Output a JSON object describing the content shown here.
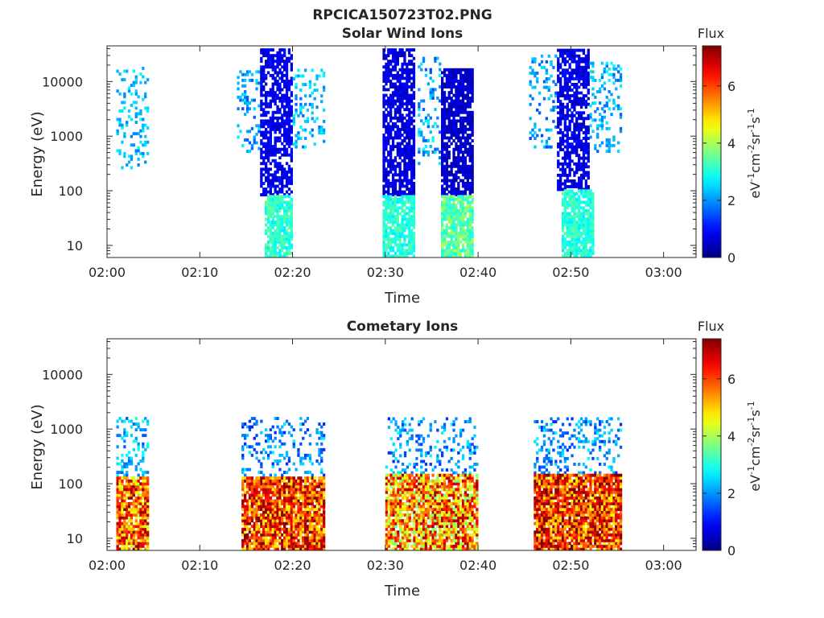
{
  "figure": {
    "title": "RPCICA150723T02.PNG"
  },
  "colors": {
    "background": "#ffffff",
    "axis": "#262626",
    "colormap": "jet"
  },
  "chart_data": [
    {
      "type": "heatmap",
      "title": "Solar Wind Ions",
      "xlabel": "Time",
      "ylabel": "Energy (eV)",
      "x_unit": "minutes after 02:00",
      "xlim": [
        0,
        63.5
      ],
      "ylim": [
        6,
        45000
      ],
      "y_scale": "log",
      "x_ticks": [
        {
          "value": 0,
          "label": "02:00"
        },
        {
          "value": 10,
          "label": "02:10"
        },
        {
          "value": 20,
          "label": "02:20"
        },
        {
          "value": 30,
          "label": "02:30"
        },
        {
          "value": 40,
          "label": "02:40"
        },
        {
          "value": 50,
          "label": "02:50"
        },
        {
          "value": 60,
          "label": "03:00"
        }
      ],
      "y_ticks": [
        {
          "value": 10,
          "label": "10"
        },
        {
          "value": 100,
          "label": "100"
        },
        {
          "value": 1000,
          "label": "1000"
        },
        {
          "value": 10000,
          "label": "10000"
        }
      ],
      "colorbar": {
        "title": "Flux",
        "label_parts": [
          "eV",
          "-1",
          "cm",
          "-2",
          "sr",
          "-1",
          "s",
          "-1"
        ],
        "range": [
          0,
          7.4
        ],
        "ticks": [
          {
            "value": 0,
            "label": "0"
          },
          {
            "value": 2,
            "label": "2"
          },
          {
            "value": 4,
            "label": "4"
          },
          {
            "value": 6,
            "label": "6"
          }
        ]
      },
      "blocks": [
        {
          "t": [
            1.0,
            4.5
          ],
          "e": [
            250,
            18000
          ],
          "fill": 0.25,
          "base": 1.8,
          "spread": 1.0
        },
        {
          "t": [
            14.0,
            16.5
          ],
          "e": [
            500,
            16000
          ],
          "fill": 0.22,
          "base": 1.5,
          "spread": 1.2
        },
        {
          "t": [
            16.5,
            20.0
          ],
          "e": [
            80,
            38000
          ],
          "fill": 0.7,
          "base": 0.5,
          "spread": 0.6
        },
        {
          "t": [
            20.0,
            23.5
          ],
          "e": [
            600,
            16000
          ],
          "fill": 0.25,
          "base": 1.6,
          "spread": 1.2
        },
        {
          "t": [
            17.0,
            20.0
          ],
          "e": [
            6,
            80
          ],
          "fill": 0.85,
          "base": 2.6,
          "spread": 1.0
        },
        {
          "t": [
            29.7,
            33.2
          ],
          "e": [
            80,
            38000
          ],
          "fill": 0.75,
          "base": 0.4,
          "spread": 0.6
        },
        {
          "t": [
            29.7,
            33.2
          ],
          "e": [
            6,
            80
          ],
          "fill": 0.85,
          "base": 2.6,
          "spread": 0.9
        },
        {
          "t": [
            33.5,
            36.0
          ],
          "e": [
            300,
            26000
          ],
          "fill": 0.2,
          "base": 1.4,
          "spread": 1.4
        },
        {
          "t": [
            36.0,
            39.5
          ],
          "e": [
            80,
            16000
          ],
          "fill": 0.8,
          "base": 0.3,
          "spread": 0.5
        },
        {
          "t": [
            36.0,
            39.5
          ],
          "e": [
            6,
            80
          ],
          "fill": 0.85,
          "base": 2.8,
          "spread": 1.3
        },
        {
          "t": [
            45.5,
            48.5
          ],
          "e": [
            600,
            30000
          ],
          "fill": 0.25,
          "base": 1.4,
          "spread": 1.2
        },
        {
          "t": [
            48.5,
            52.0
          ],
          "e": [
            100,
            38000
          ],
          "fill": 0.7,
          "base": 0.4,
          "spread": 0.7
        },
        {
          "t": [
            52.0,
            55.5
          ],
          "e": [
            500,
            22000
          ],
          "fill": 0.25,
          "base": 1.6,
          "spread": 1.2
        },
        {
          "t": [
            49.0,
            52.5
          ],
          "e": [
            6,
            100
          ],
          "fill": 0.85,
          "base": 2.6,
          "spread": 0.9
        }
      ]
    },
    {
      "type": "heatmap",
      "title": "Cometary Ions",
      "xlabel": "Time",
      "ylabel": "Energy (eV)",
      "x_unit": "minutes after 02:00",
      "xlim": [
        0,
        63.5
      ],
      "ylim": [
        6,
        45000
      ],
      "y_scale": "log",
      "x_ticks": [
        {
          "value": 0,
          "label": "02:00"
        },
        {
          "value": 10,
          "label": "02:10"
        },
        {
          "value": 20,
          "label": "02:20"
        },
        {
          "value": 30,
          "label": "02:30"
        },
        {
          "value": 40,
          "label": "02:40"
        },
        {
          "value": 50,
          "label": "02:50"
        },
        {
          "value": 60,
          "label": "03:00"
        }
      ],
      "y_ticks": [
        {
          "value": 10,
          "label": "10"
        },
        {
          "value": 100,
          "label": "100"
        },
        {
          "value": 1000,
          "label": "1000"
        },
        {
          "value": 10000,
          "label": "10000"
        }
      ],
      "colorbar": {
        "title": "Flux",
        "label_parts": [
          "eV",
          "-1",
          "cm",
          "-2",
          "sr",
          "-1",
          "s",
          "-1"
        ],
        "range": [
          0,
          7.4
        ],
        "ticks": [
          {
            "value": 0,
            "label": "0"
          },
          {
            "value": 2,
            "label": "2"
          },
          {
            "value": 4,
            "label": "4"
          },
          {
            "value": 6,
            "label": "6"
          }
        ]
      },
      "blocks": [
        {
          "t": [
            1.0,
            4.5
          ],
          "e": [
            120,
            1500
          ],
          "fill": 0.3,
          "base": 1.5,
          "spread": 1.5
        },
        {
          "t": [
            1.0,
            4.5
          ],
          "e": [
            6,
            120
          ],
          "fill": 0.9,
          "base": 4.2,
          "spread": 3.2
        },
        {
          "t": [
            14.5,
            23.5
          ],
          "e": [
            120,
            1500
          ],
          "fill": 0.22,
          "base": 1.2,
          "spread": 1.5
        },
        {
          "t": [
            14.5,
            23.5
          ],
          "e": [
            6,
            120
          ],
          "fill": 0.92,
          "base": 4.6,
          "spread": 3.0
        },
        {
          "t": [
            30.0,
            40.0
          ],
          "e": [
            150,
            1500
          ],
          "fill": 0.22,
          "base": 1.2,
          "spread": 1.6
        },
        {
          "t": [
            30.0,
            40.0
          ],
          "e": [
            6,
            150
          ],
          "fill": 0.85,
          "base": 3.6,
          "spread": 3.6
        },
        {
          "t": [
            46.0,
            55.5
          ],
          "e": [
            150,
            1500
          ],
          "fill": 0.25,
          "base": 1.2,
          "spread": 1.6
        },
        {
          "t": [
            46.0,
            55.5
          ],
          "e": [
            6,
            150
          ],
          "fill": 0.92,
          "base": 4.6,
          "spread": 3.0
        }
      ]
    }
  ]
}
